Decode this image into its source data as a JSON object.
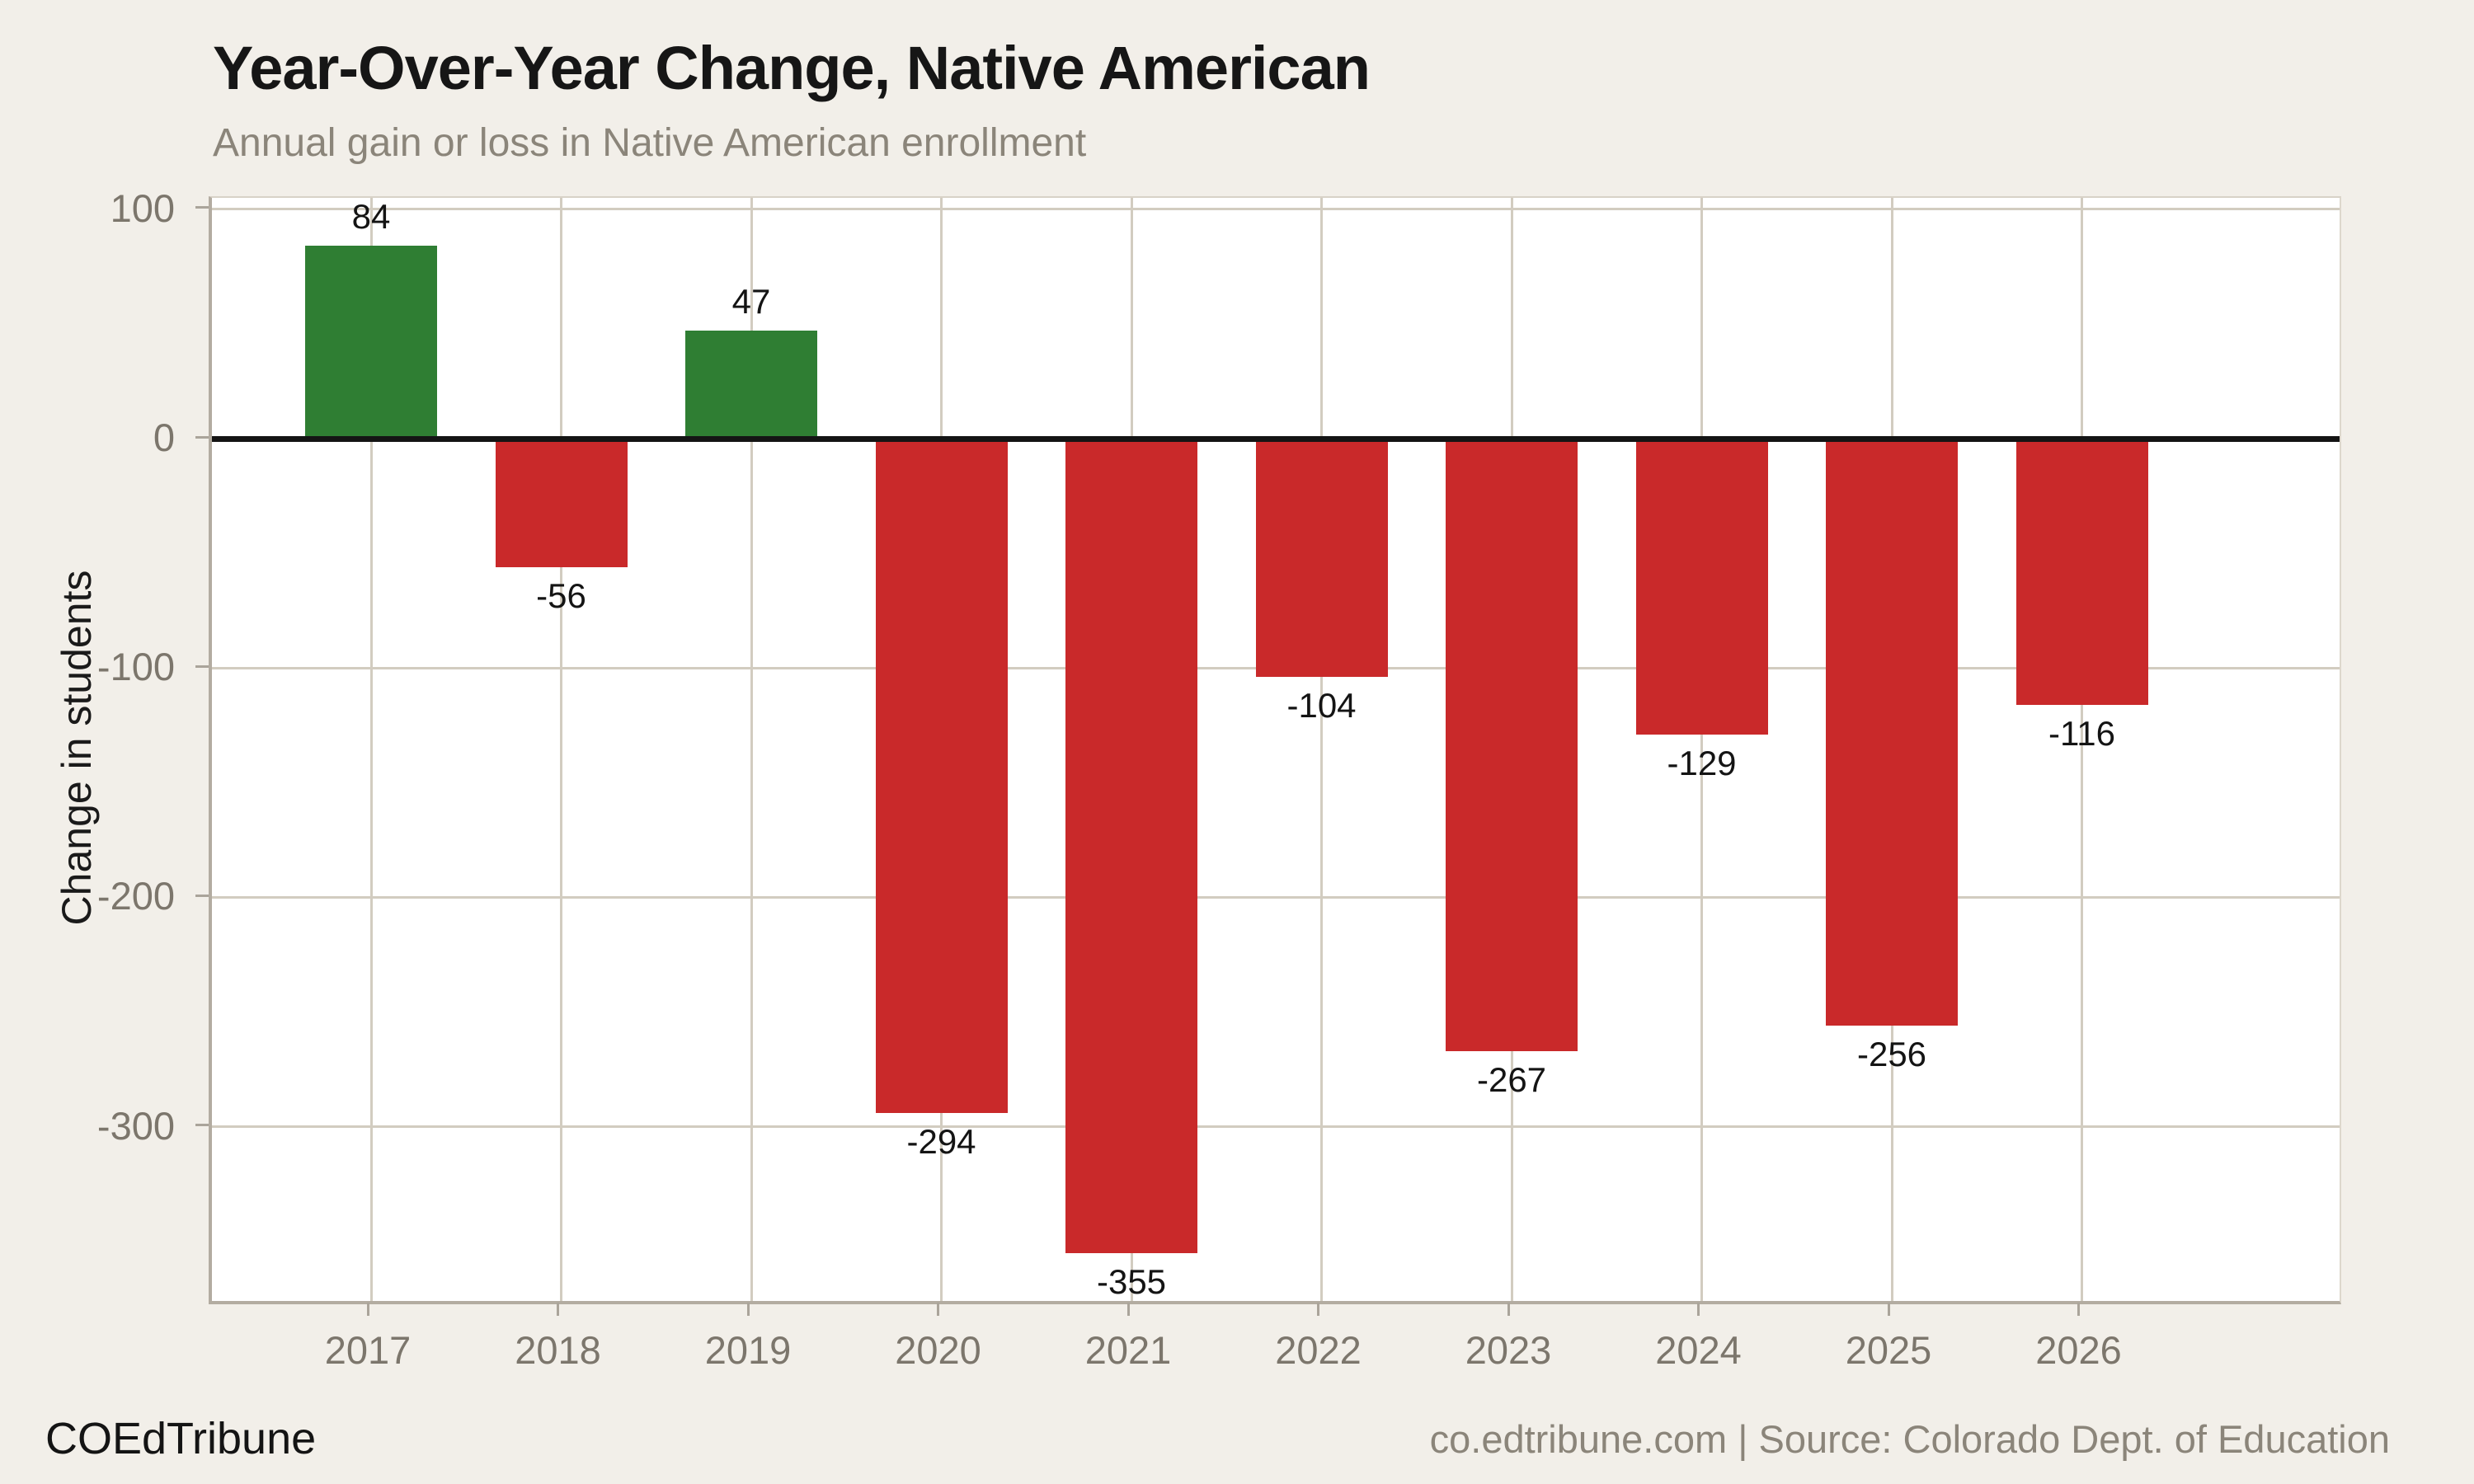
{
  "header": {
    "title": "Year-Over-Year Change, Native American",
    "subtitle": "Annual gain or loss in Native American enrollment"
  },
  "footer": {
    "brand": "COEdTribune",
    "source": "co.edtribune.com | Source: Colorado Dept. of Education"
  },
  "colors": {
    "background": "#f2efe9",
    "plot_background": "#ffffff",
    "gridline": "#d2ccc0",
    "axis_line": "#b3aca1",
    "zero_line": "#141414",
    "positive_bar": "#2f7e33",
    "negative_bar": "#c9292a",
    "tick_text": "#7c766c",
    "subtitle_text": "#8b857a",
    "title_text": "#161616",
    "value_text": "#141414"
  },
  "chart_data": {
    "type": "bar",
    "title": "Year-Over-Year Change, Native American",
    "subtitle": "Annual gain or loss in Native American enrollment",
    "categories": [
      "2017",
      "2018",
      "2019",
      "2020",
      "2021",
      "2022",
      "2023",
      "2024",
      "2025",
      "2026"
    ],
    "values": [
      84,
      -56,
      47,
      -294,
      -355,
      -104,
      -267,
      -129,
      -256,
      -116
    ],
    "xlabel": "",
    "ylabel": "Change in students",
    "yticks": [
      100,
      0,
      -100,
      -200,
      -300
    ],
    "ylim": [
      -376,
      105
    ],
    "grid": true,
    "legend_position": "none",
    "value_labels_shown": true,
    "positive_color": "#2f7e33",
    "negative_color": "#c9292a",
    "zero_baseline_shown": true
  }
}
